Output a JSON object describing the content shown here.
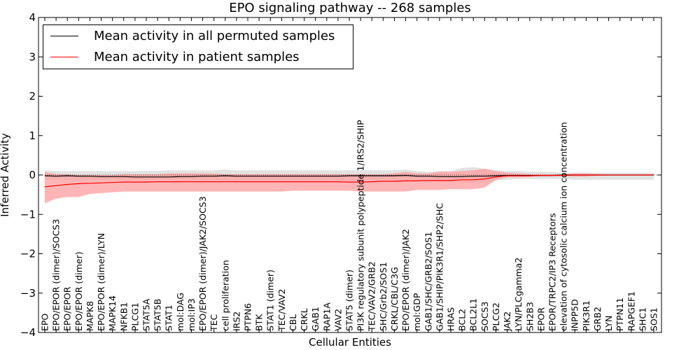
{
  "chart_data": {
    "type": "line",
    "title": "EPO signaling pathway -- 268 samples",
    "xlabel": "Cellular Entities",
    "ylabel": "Inferred Activity",
    "ylim": [
      -4,
      4
    ],
    "yticks": [
      "−4",
      "−3",
      "−2",
      "−1",
      "0",
      "1",
      "2",
      "3",
      "4"
    ],
    "legend_position": "top-left",
    "categories": [
      "EPO",
      "EPO/EPOR (dimer)/SOCS3",
      "EPO/EPOR",
      "EPO/EPOR (dimer)",
      "MAPK8",
      "EPO/EPOR (dimer)/LYN",
      "MAPK14",
      "NFKB1",
      "PLCG1",
      "STAT5A",
      "STAT5B",
      "STAT1",
      "mol:DAG",
      "mol:IP3",
      "EPO/EPOR (dimer)/JAK2/SOCS3",
      "TEC",
      "cell proliferation",
      "IRS2",
      "PTPN6",
      "BTK",
      "STAT1 (dimer)",
      "TEC/VAV2",
      "CBL",
      "CRKL",
      "GAB1",
      "RAP1A",
      "VAV2",
      "STAT5 (dimer)",
      "PI3K regulatory subunit polypeptide 1/IRS2/SHIP",
      "TEC/VAV2/GRB2",
      "SHC/Grb2/SOS1",
      "CRKL/CBL/C3G",
      "EPO/EPOR (dimer)/JAK2",
      "mol:GDP",
      "GAB1/SHC/GRB2/SOS1",
      "GAB1/SHIP/PIK3R1/SHP2/SHC",
      "HRAS",
      "BCL2",
      "BCL2L1",
      "SOCS3",
      "PLCG2",
      "JAK2",
      "LYN/PLCgamma2",
      "SH2B3",
      "EPOR",
      "EPOR/TRPC2/IP3 Receptors",
      "elevation of cytosolic calcium ion concentration",
      "INPP5D",
      "PIK3R1",
      "GRB2",
      "LYN",
      "PTPN11",
      "RAPGEF1",
      "SHC1",
      "SOS1"
    ],
    "series": [
      {
        "name": "Mean activity in all permuted samples",
        "color": "#000000",
        "values": [
          -0.02,
          -0.03,
          -0.02,
          -0.03,
          -0.03,
          -0.04,
          -0.04,
          -0.04,
          -0.05,
          -0.05,
          -0.05,
          -0.05,
          -0.04,
          -0.04,
          -0.03,
          -0.03,
          -0.02,
          -0.03,
          -0.03,
          -0.03,
          -0.03,
          -0.03,
          -0.03,
          -0.03,
          -0.03,
          -0.03,
          -0.03,
          -0.02,
          -0.02,
          -0.02,
          -0.02,
          -0.02,
          -0.01,
          -0.03,
          -0.03,
          -0.04,
          -0.04,
          -0.04,
          -0.03,
          -0.03,
          -0.02,
          -0.01,
          -0.01,
          -0.01,
          -0.01,
          -0.01,
          0.0,
          0.0,
          0.0,
          0.0,
          0.0,
          0.0,
          0.0,
          0.0,
          0.0
        ],
        "lower": [
          -0.12,
          -0.12,
          -0.12,
          -0.12,
          -0.12,
          -0.12,
          -0.12,
          -0.12,
          -0.12,
          -0.12,
          -0.12,
          -0.12,
          -0.12,
          -0.12,
          -0.12,
          -0.14,
          -0.14,
          -0.14,
          -0.14,
          -0.14,
          -0.14,
          -0.14,
          -0.14,
          -0.14,
          -0.14,
          -0.14,
          -0.14,
          -0.14,
          -0.14,
          -0.14,
          -0.14,
          -0.14,
          -0.14,
          -0.12,
          -0.15,
          -0.18,
          -0.18,
          -0.2,
          -0.2,
          -0.18,
          -0.14,
          -0.12,
          -0.1,
          -0.1,
          -0.1,
          -0.1,
          -0.1,
          -0.12,
          -0.12,
          -0.12,
          -0.12,
          -0.12,
          -0.12,
          -0.12,
          -0.12
        ],
        "upper": [
          0.12,
          0.1,
          0.1,
          0.1,
          0.1,
          0.1,
          0.1,
          0.1,
          0.1,
          0.1,
          0.1,
          0.12,
          0.12,
          0.12,
          0.12,
          0.12,
          0.14,
          0.12,
          0.12,
          0.12,
          0.12,
          0.12,
          0.12,
          0.12,
          0.12,
          0.12,
          0.12,
          0.12,
          0.12,
          0.12,
          0.12,
          0.12,
          0.14,
          0.1,
          0.08,
          0.1,
          0.1,
          0.18,
          0.2,
          0.16,
          0.12,
          0.1,
          0.1,
          0.08,
          0.08,
          0.08,
          0.06,
          0.06,
          0.06,
          0.06,
          0.06,
          0.06,
          0.06,
          0.06,
          0.06
        ]
      },
      {
        "name": "Mean activity in patient samples",
        "color": "#ff0000",
        "fill": "#ff9c9c",
        "values": [
          -0.3,
          -0.27,
          -0.24,
          -0.22,
          -0.21,
          -0.2,
          -0.19,
          -0.18,
          -0.18,
          -0.18,
          -0.17,
          -0.17,
          -0.17,
          -0.17,
          -0.17,
          -0.17,
          -0.17,
          -0.17,
          -0.17,
          -0.17,
          -0.17,
          -0.17,
          -0.17,
          -0.17,
          -0.17,
          -0.17,
          -0.17,
          -0.18,
          -0.18,
          -0.17,
          -0.16,
          -0.16,
          -0.15,
          -0.15,
          -0.14,
          -0.14,
          -0.14,
          -0.12,
          -0.12,
          -0.1,
          -0.05,
          -0.02,
          -0.02,
          -0.02,
          -0.01,
          -0.01,
          -0.01,
          0.0,
          0.0,
          0.0,
          0.0,
          0.0,
          0.0,
          0.0,
          0.0
        ],
        "lower": [
          -0.72,
          -0.6,
          -0.56,
          -0.56,
          -0.48,
          -0.46,
          -0.44,
          -0.42,
          -0.42,
          -0.42,
          -0.42,
          -0.42,
          -0.42,
          -0.42,
          -0.42,
          -0.42,
          -0.42,
          -0.42,
          -0.42,
          -0.42,
          -0.42,
          -0.42,
          -0.4,
          -0.4,
          -0.4,
          -0.4,
          -0.4,
          -0.4,
          -0.42,
          -0.42,
          -0.42,
          -0.42,
          -0.42,
          -0.38,
          -0.38,
          -0.38,
          -0.36,
          -0.36,
          -0.36,
          -0.32,
          -0.12,
          -0.06,
          -0.06,
          -0.05,
          -0.03,
          -0.03,
          -0.03,
          -0.04,
          -0.04,
          -0.02,
          -0.01,
          -0.01,
          -0.01,
          -0.01,
          -0.01
        ],
        "upper": [
          0.08,
          0.02,
          0.02,
          0.0,
          0.0,
          0.0,
          0.0,
          0.02,
          0.02,
          0.02,
          0.02,
          0.04,
          0.04,
          0.04,
          0.04,
          0.04,
          0.02,
          0.02,
          0.02,
          0.02,
          0.02,
          0.02,
          0.02,
          0.02,
          0.02,
          0.02,
          0.02,
          0.02,
          0.02,
          0.02,
          0.02,
          0.04,
          0.08,
          0.04,
          0.04,
          0.08,
          0.08,
          0.1,
          0.12,
          0.16,
          0.1,
          0.06,
          0.04,
          0.02,
          0.02,
          0.02,
          0.02,
          0.04,
          0.04,
          0.02,
          0.01,
          0.01,
          0.01,
          0.01,
          0.01
        ]
      }
    ]
  }
}
